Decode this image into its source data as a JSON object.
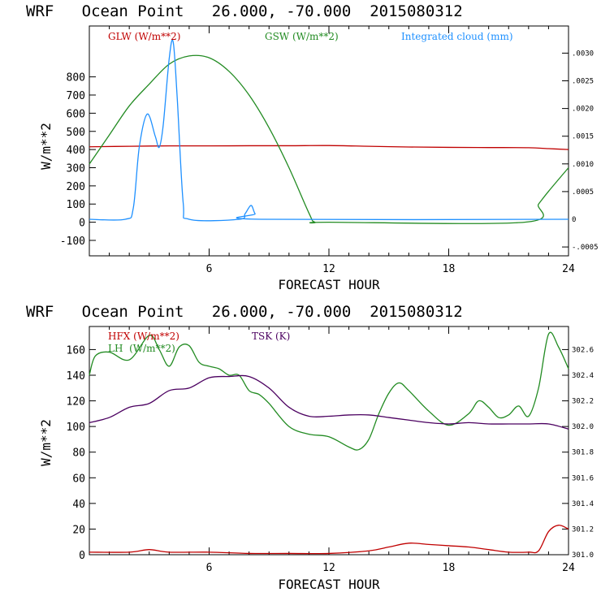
{
  "charts": [
    {
      "title": "WRF   Ocean Point   26.000, -70.000  2015080312",
      "xlabel": "FORECAST HOUR",
      "ylabel": "W/m**2",
      "xticks": [
        "6",
        "12",
        "18",
        "24"
      ],
      "yticks": [
        "-100",
        "0",
        "100",
        "200",
        "300",
        "400",
        "500",
        "600",
        "700",
        "800"
      ],
      "rticks": [
        "-.0005",
        "0",
        ".0005",
        ".0010",
        ".0015",
        ".0020",
        ".0025",
        ".0030"
      ],
      "legend": [
        {
          "label": "GLW (W/m**2)",
          "color": "#c00000"
        },
        {
          "label": "GSW (W/m**2)",
          "color": "#228b22"
        },
        {
          "label": "Integrated cloud (mm)",
          "color": "#1e90ff"
        }
      ]
    },
    {
      "title": "WRF   Ocean Point   26.000, -70.000  2015080312",
      "xlabel": "FORECAST HOUR",
      "ylabel": "W/m**2",
      "xticks": [
        "6",
        "12",
        "18",
        "24"
      ],
      "yticks": [
        "0",
        "20",
        "40",
        "60",
        "80",
        "100",
        "120",
        "140",
        "160"
      ],
      "rticks": [
        "301.0",
        "301.2",
        "301.4",
        "301.6",
        "301.8",
        "302.0",
        "302.2",
        "302.4",
        "302.6"
      ],
      "legend": [
        {
          "label": "HFX (W/m**2)",
          "color": "#c00000"
        },
        {
          "label": "LH  (W/m**2)",
          "color": "#228b22"
        },
        {
          "label": "TSK (K)",
          "color": "#4b0060"
        }
      ]
    }
  ],
  "chart_data": [
    {
      "type": "line",
      "title": "WRF   Ocean Point   26.000, -70.000  2015080312",
      "xlabel": "FORECAST HOUR",
      "ylabel": "W/m**2",
      "xlim": [
        0,
        24
      ],
      "ylim": [
        -185,
        1080
      ],
      "y2lim": [
        -0.00066,
        0.00349
      ],
      "series": [
        {
          "name": "GLW (W/m**2)",
          "color": "#c00000",
          "axis": "left",
          "x": [
            0,
            2,
            4,
            6,
            8,
            10,
            12,
            14,
            16,
            18,
            20,
            22,
            23,
            24
          ],
          "y": [
            415,
            418,
            420,
            420,
            421,
            421,
            422,
            418,
            414,
            412,
            411,
            410,
            405,
            400
          ]
        },
        {
          "name": "GSW (W/m**2)",
          "color": "#228b22",
          "axis": "left",
          "x": [
            0,
            1,
            2,
            3,
            4,
            5,
            6,
            7,
            8,
            9,
            10,
            11,
            11.3,
            12,
            21.8,
            22.5,
            23,
            24
          ],
          "y": [
            320,
            480,
            640,
            760,
            870,
            915,
            905,
            830,
            700,
            520,
            300,
            50,
            0,
            0,
            0,
            100,
            170,
            300
          ]
        },
        {
          "name": "Integrated cloud (mm)",
          "color": "#1e90ff",
          "axis": "right",
          "x": [
            0,
            1.8,
            2.2,
            2.5,
            2.9,
            3.3,
            3.5,
            3.7,
            4.0,
            4.2,
            4.4,
            4.7,
            5.0,
            7.5,
            7.8,
            8.1,
            8.3,
            8.6,
            24
          ],
          "y": [
            0,
            0,
            0.0002,
            0.0013,
            0.0019,
            0.0015,
            0.0013,
            0.0017,
            0.0029,
            0.0032,
            0.0022,
            0.0003,
            0,
            0,
            0.0001,
            0.00025,
            0.0001,
            0,
            0
          ]
        }
      ]
    },
    {
      "type": "line",
      "title": "WRF   Ocean Point   26.000, -70.000  2015080312",
      "xlabel": "FORECAST HOUR",
      "ylabel": "W/m**2",
      "xlim": [
        0,
        24
      ],
      "ylim": [
        0,
        178
      ],
      "y2lim": [
        301.0,
        302.78
      ],
      "series": [
        {
          "name": "HFX (W/m**2)",
          "color": "#c00000",
          "axis": "left",
          "x": [
            0,
            2,
            3,
            4,
            6,
            8,
            10,
            12,
            14,
            15,
            16,
            17,
            18,
            19,
            20,
            21,
            22,
            22.5,
            23,
            23.5,
            24
          ],
          "y": [
            2,
            2,
            4,
            2,
            2,
            1,
            1,
            1,
            3,
            6,
            9,
            8,
            7,
            6,
            4,
            2,
            2,
            3,
            18,
            23,
            20
          ]
        },
        {
          "name": "LH  (W/m**2)",
          "color": "#228b22",
          "axis": "left",
          "x": [
            0,
            0.3,
            1,
            2,
            3,
            3.5,
            4,
            4.5,
            5,
            5.5,
            6,
            6.5,
            7,
            7.5,
            8,
            8.5,
            9,
            10,
            11,
            12,
            13,
            13.5,
            14,
            14.5,
            15,
            15.5,
            16,
            17,
            18,
            19,
            19.5,
            20,
            20.5,
            21,
            21.5,
            22,
            22.5,
            23,
            23.5,
            24
          ],
          "y": [
            140,
            155,
            158,
            152,
            171,
            160,
            147,
            162,
            163,
            150,
            147,
            145,
            140,
            140,
            128,
            125,
            118,
            100,
            94,
            92,
            84,
            82,
            90,
            110,
            126,
            134,
            128,
            112,
            101,
            110,
            120,
            115,
            107,
            109,
            116,
            108,
            130,
            172,
            162,
            145
          ]
        },
        {
          "name": "TSK (K)",
          "color": "#4b0060",
          "axis": "right",
          "x": [
            0,
            1,
            2,
            3,
            4,
            5,
            6,
            7,
            8,
            9,
            10,
            11,
            12,
            13,
            14,
            15,
            16,
            17,
            18,
            19,
            20,
            21,
            22,
            23,
            24
          ],
          "y": [
            302.03,
            302.07,
            302.15,
            302.18,
            302.28,
            302.3,
            302.38,
            302.39,
            302.39,
            302.3,
            302.15,
            302.08,
            302.08,
            302.09,
            302.09,
            302.07,
            302.05,
            302.03,
            302.02,
            302.03,
            302.02,
            302.02,
            302.02,
            302.02,
            301.98
          ]
        }
      ]
    }
  ]
}
